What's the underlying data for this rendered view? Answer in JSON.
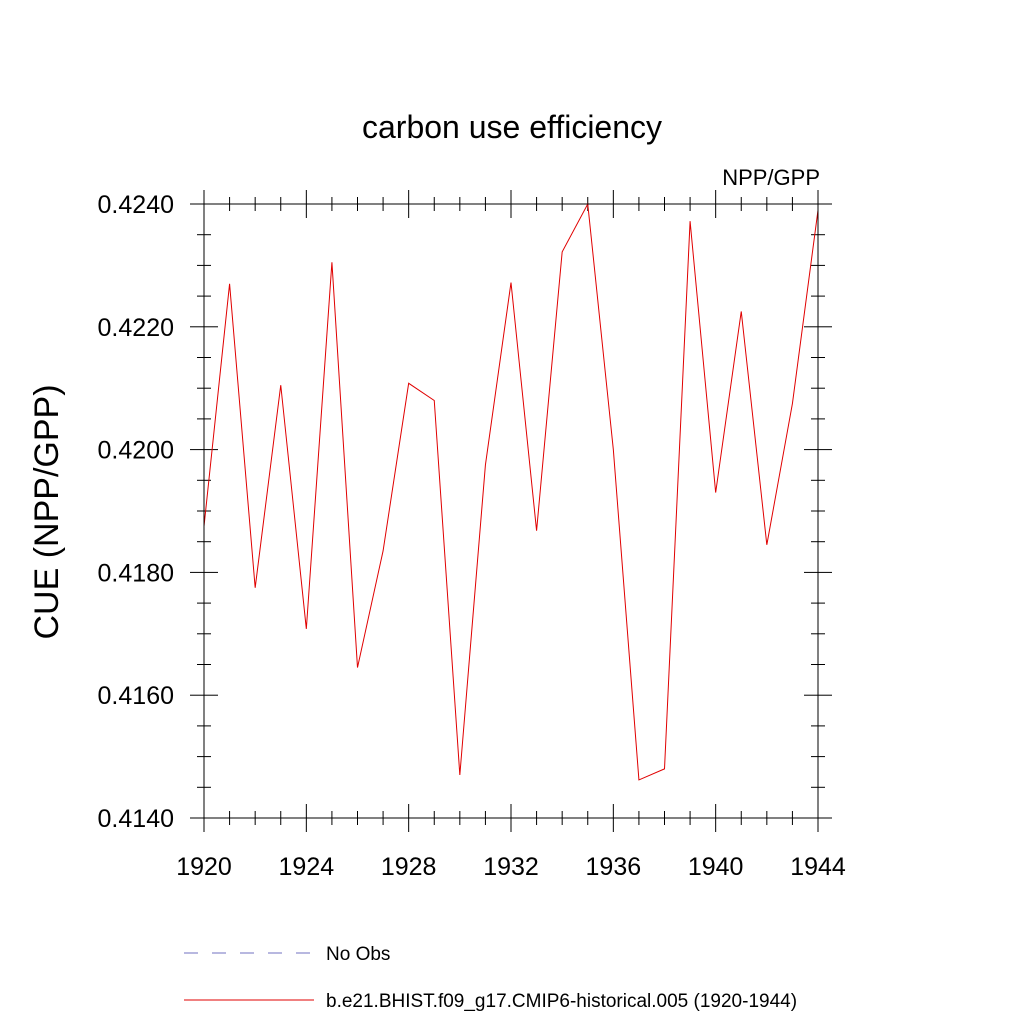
{
  "chart_data": {
    "type": "line",
    "title": "carbon use efficiency",
    "subtitle": "NPP/GPP",
    "xlabel": "",
    "ylabel": "CUE  (NPP/GPP)",
    "xlim": [
      1920,
      1944
    ],
    "ylim": [
      0.414,
      0.424
    ],
    "x_ticks": [
      "1920",
      "1924",
      "1928",
      "1932",
      "1936",
      "1940",
      "1944"
    ],
    "y_ticks": [
      "0.4140",
      "0.4160",
      "0.4180",
      "0.4200",
      "0.4220",
      "0.4240"
    ],
    "grid": false,
    "legend_position": "bottom",
    "series": [
      {
        "name": "b.e21.BHIST.f09_g17.CMIP6-historical.005 (1920-1944)",
        "color": "#e00000",
        "style": "solid",
        "x": [
          1920,
          1921,
          1922,
          1923,
          1924,
          1925,
          1926,
          1927,
          1928,
          1929,
          1930,
          1931,
          1932,
          1933,
          1934,
          1935,
          1936,
          1937,
          1938,
          1939,
          1940,
          1941,
          1942,
          1943,
          1944
        ],
        "y": [
          0.41875,
          0.4227,
          0.41775,
          0.42105,
          0.41708,
          0.42305,
          0.41645,
          0.41835,
          0.42108,
          0.4208,
          0.4147,
          0.41975,
          0.42272,
          0.41868,
          0.42322,
          0.424,
          0.42,
          0.41462,
          0.4148,
          0.42372,
          0.4193,
          0.42225,
          0.41845,
          0.42075,
          0.4239
        ]
      },
      {
        "name": "No Obs",
        "color": "#7070c0",
        "style": "dashed",
        "x": [],
        "y": []
      }
    ]
  }
}
